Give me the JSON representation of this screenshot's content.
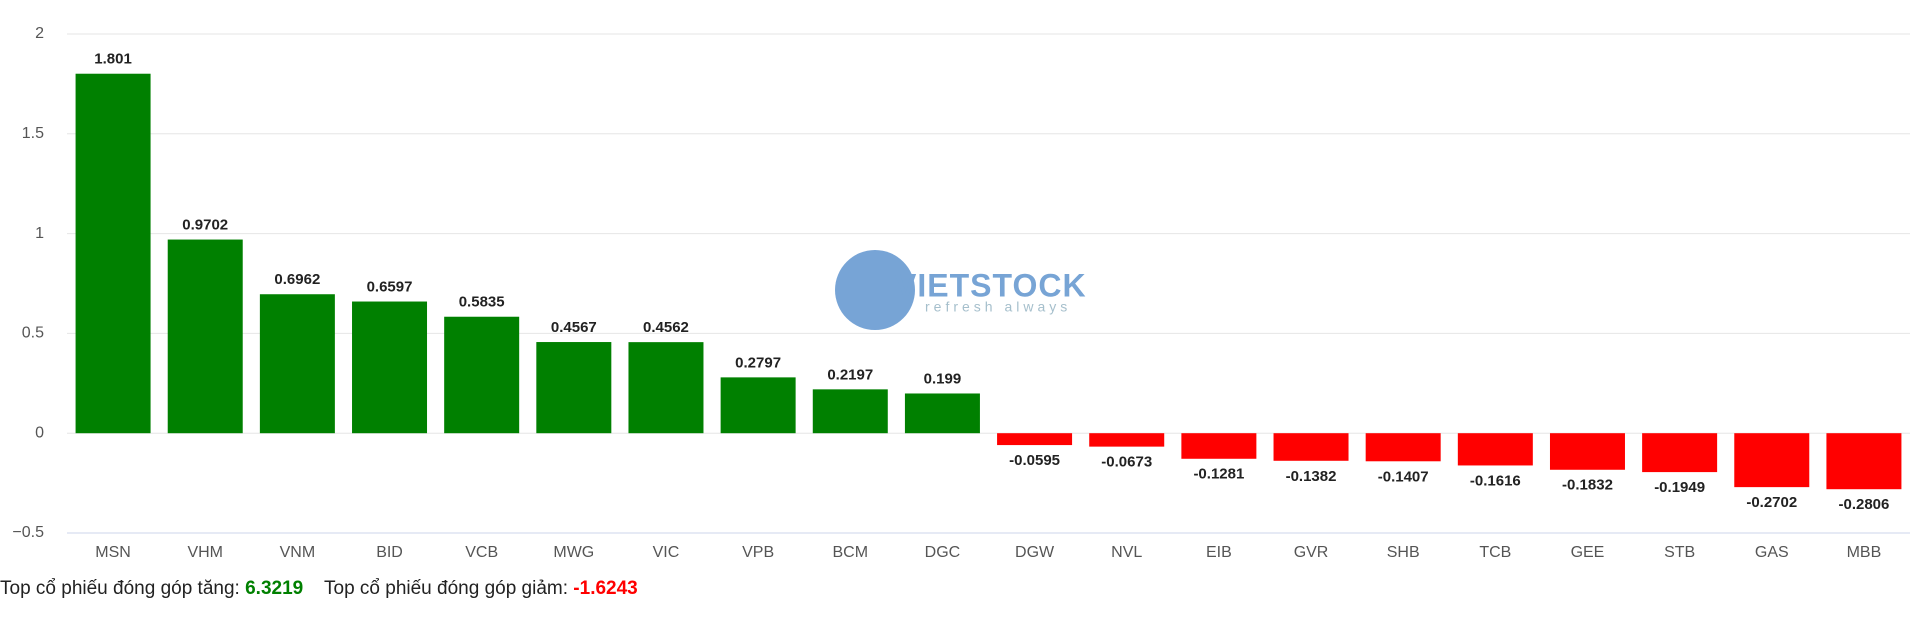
{
  "chart_data": {
    "type": "bar",
    "categories": [
      "MSN",
      "VHM",
      "VNM",
      "BID",
      "VCB",
      "MWG",
      "VIC",
      "VPB",
      "BCM",
      "DGC",
      "DGW",
      "NVL",
      "EIB",
      "GVR",
      "SHB",
      "TCB",
      "GEE",
      "STB",
      "GAS",
      "MBB"
    ],
    "values": [
      1.801,
      0.9702,
      0.6962,
      0.6597,
      0.5835,
      0.4567,
      0.4562,
      0.2797,
      0.2197,
      0.199,
      -0.0595,
      -0.0673,
      -0.1281,
      -0.1382,
      -0.1407,
      -0.1616,
      -0.1832,
      -0.1949,
      -0.2702,
      -0.2806
    ],
    "color": "#008000",
    "negative_color": "#ff0000",
    "ylim": [
      -0.5,
      2
    ],
    "yticks": [
      {
        "value": -0.5,
        "label": "−0.5"
      },
      0,
      0.5,
      1,
      1.5,
      2
    ],
    "grid": true
  },
  "watermark": {
    "brand": "VIETSTOCK",
    "slogan": "refresh always"
  },
  "footer": {
    "up_label": "Top cổ phiếu đóng góp tăng:",
    "up_value": "6.3219",
    "down_label": "Top cổ phiếu đóng góp giảm:",
    "down_value": "-1.6243"
  }
}
